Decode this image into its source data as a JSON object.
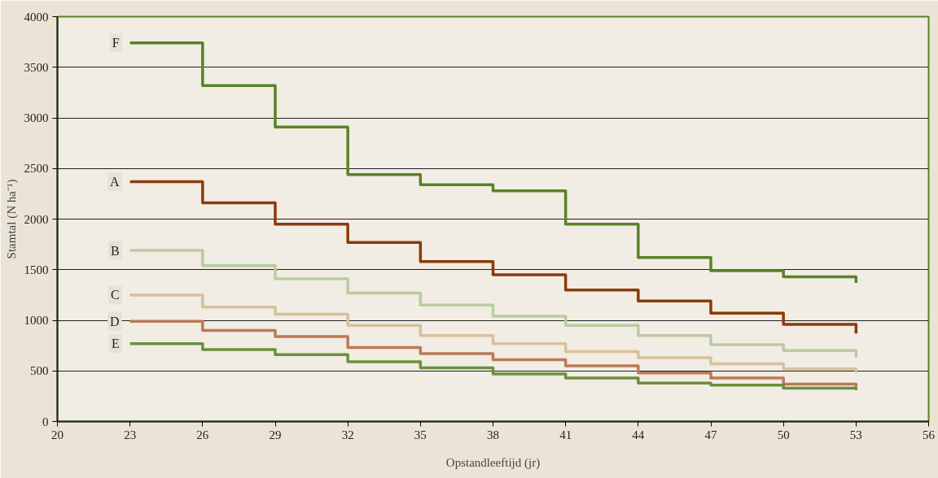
{
  "chart_data": {
    "type": "step",
    "xlabel": "Opstandleeftijd (jr)",
    "ylabel": "Stamtal (N ha⁻¹)",
    "x": [
      23,
      26,
      29,
      32,
      35,
      38,
      41,
      44,
      47,
      50,
      53
    ],
    "xlim": [
      20,
      56
    ],
    "xticks": [
      20,
      23,
      26,
      29,
      32,
      35,
      38,
      41,
      44,
      47,
      50,
      53,
      56
    ],
    "ylim": [
      0,
      4000
    ],
    "yticks": [
      0,
      500,
      1000,
      1500,
      2000,
      2500,
      3000,
      3500,
      4000
    ],
    "grid": "y",
    "line_style": "solid",
    "marker": "none",
    "series": [
      {
        "name": "F",
        "color": "#5a8228",
        "values": [
          3740,
          3320,
          2910,
          2440,
          2340,
          2280,
          1950,
          1620,
          1490,
          1430,
          1370
        ]
      },
      {
        "name": "A",
        "color": "#8b3a0a",
        "values": [
          2370,
          2160,
          1950,
          1770,
          1580,
          1450,
          1300,
          1190,
          1070,
          960,
          870
        ]
      },
      {
        "name": "B",
        "color": "#b8cca0",
        "values": [
          1690,
          1540,
          1410,
          1270,
          1150,
          1040,
          950,
          850,
          760,
          700,
          630
        ]
      },
      {
        "name": "C",
        "color": "#d8c09a",
        "values": [
          1250,
          1130,
          1060,
          950,
          850,
          770,
          690,
          630,
          570,
          520,
          480
        ]
      },
      {
        "name": "D",
        "color": "#bb7a55",
        "values": [
          990,
          900,
          840,
          730,
          670,
          610,
          550,
          480,
          430,
          370,
          340
        ]
      },
      {
        "name": "E",
        "color": "#6b8f3a",
        "values": [
          770,
          710,
          660,
          590,
          530,
          470,
          430,
          380,
          360,
          330,
          310
        ]
      }
    ]
  }
}
